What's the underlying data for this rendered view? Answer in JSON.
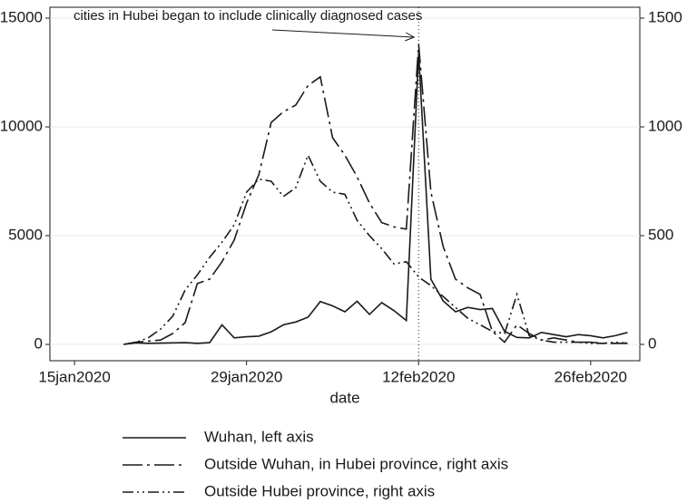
{
  "chart_data": {
    "type": "line",
    "annotation": {
      "text": "cities in Hubei began to include clinically diagnosed cases",
      "x": "2020-02-12"
    },
    "xlabel": "date",
    "x": [
      "2020-01-19",
      "2020-01-20",
      "2020-01-21",
      "2020-01-22",
      "2020-01-23",
      "2020-01-24",
      "2020-01-25",
      "2020-01-26",
      "2020-01-27",
      "2020-01-28",
      "2020-01-29",
      "2020-01-30",
      "2020-01-31",
      "2020-02-01",
      "2020-02-02",
      "2020-02-03",
      "2020-02-04",
      "2020-02-05",
      "2020-02-06",
      "2020-02-07",
      "2020-02-08",
      "2020-02-09",
      "2020-02-10",
      "2020-02-11",
      "2020-02-12",
      "2020-02-13",
      "2020-02-14",
      "2020-02-15",
      "2020-02-16",
      "2020-02-17",
      "2020-02-18",
      "2020-02-19",
      "2020-02-20",
      "2020-02-21",
      "2020-02-22",
      "2020-02-23",
      "2020-02-24",
      "2020-02-25",
      "2020-02-26",
      "2020-02-27",
      "2020-02-28",
      "2020-02-29"
    ],
    "series": [
      {
        "name": "Wuhan, left axis",
        "color": "#1a1a1a",
        "dash": "solid",
        "axis": "y",
        "values": [
          0,
          70,
          50,
          60,
          70,
          80,
          50,
          80,
          900,
          300,
          350,
          380,
          580,
          900,
          1030,
          1250,
          1970,
          1770,
          1500,
          1985,
          1380,
          1920,
          1550,
          1100,
          13400,
          3000,
          2000,
          1500,
          1700,
          1600,
          1650,
          600,
          320,
          300,
          550,
          450,
          350,
          450,
          400,
          300,
          400,
          550
        ]
      },
      {
        "name": "Outside Wuhan, in Hubei province, right axis",
        "color": "#1a1a1a",
        "dash": "dash-dot",
        "axis": "y2",
        "values": [
          0,
          10,
          15,
          20,
          50,
          100,
          280,
          300,
          380,
          480,
          650,
          780,
          1020,
          1070,
          1100,
          1190,
          1230,
          950,
          870,
          770,
          650,
          560,
          540,
          530,
          1380,
          700,
          450,
          300,
          260,
          230,
          60,
          10,
          90,
          50,
          20,
          30,
          20,
          10,
          10,
          5,
          5,
          5
        ]
      },
      {
        "name": "Outside Hubei province, right axis",
        "color": "#1a1a1a",
        "dash": "dash-dot-dot",
        "axis": "y2",
        "values": [
          0,
          10,
          30,
          70,
          130,
          250,
          320,
          400,
          470,
          550,
          700,
          760,
          750,
          680,
          720,
          870,
          750,
          700,
          690,
          570,
          500,
          440,
          370,
          380,
          310,
          270,
          220,
          170,
          120,
          90,
          60,
          50,
          230,
          40,
          20,
          10,
          10,
          10,
          5,
          5,
          10,
          5
        ]
      }
    ],
    "xlim": [
      "2020-01-13",
      "2020-03-01"
    ],
    "xticks": [
      {
        "value": "2020-01-15",
        "label": "15jan2020"
      },
      {
        "value": "2020-01-29",
        "label": "29jan2020"
      },
      {
        "value": "2020-02-12",
        "label": "12feb2020"
      },
      {
        "value": "2020-02-26",
        "label": "26feb2020"
      }
    ],
    "ylim": [
      -750,
      15500
    ],
    "yticks": [
      0,
      5000,
      10000,
      15000
    ],
    "y2lim": [
      -75,
      1550
    ],
    "y2ticks": [
      0,
      500,
      1000,
      1500
    ],
    "grid": true
  }
}
